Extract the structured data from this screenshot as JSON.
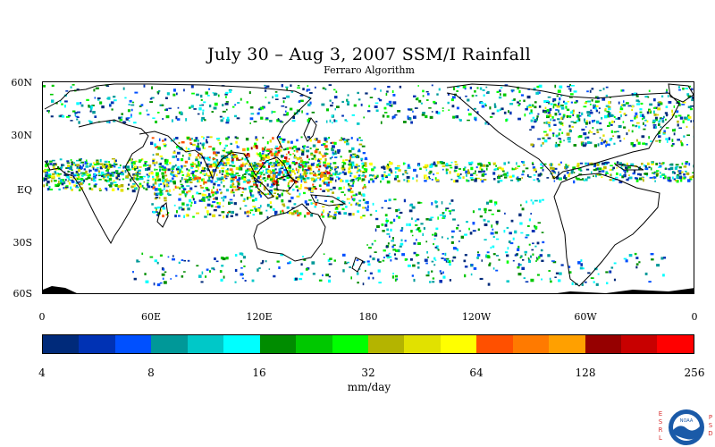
{
  "title": "July 30 – Aug 3, 2007 SSM/I Rainfall",
  "subtitle": "Ferraro Algorithm",
  "lat_labels": [
    "60N",
    "30N",
    "EQ",
    "30S",
    "60S"
  ],
  "lon_labels": [
    "0",
    "60E",
    "120E",
    "180",
    "120W",
    "60W",
    "0"
  ],
  "colorbar": {
    "ticks": [
      "4",
      "8",
      "16",
      "32",
      "64",
      "128",
      "256"
    ],
    "units": "mm/day",
    "colors": [
      "#002a7a",
      "#0032b4",
      "#0050ff",
      "#009898",
      "#00c8c8",
      "#00ffff",
      "#008c00",
      "#00c800",
      "#00ff00",
      "#b4b400",
      "#e1e100",
      "#ffff00",
      "#ff5000",
      "#ff7a00",
      "#ffa000",
      "#960000",
      "#c80000",
      "#ff0000"
    ]
  },
  "logo": {
    "left_letters": "ESRL",
    "right_letters": "PSD",
    "badge_text": "NOAA"
  },
  "icons": [
    "noaa-logo-icon"
  ]
}
